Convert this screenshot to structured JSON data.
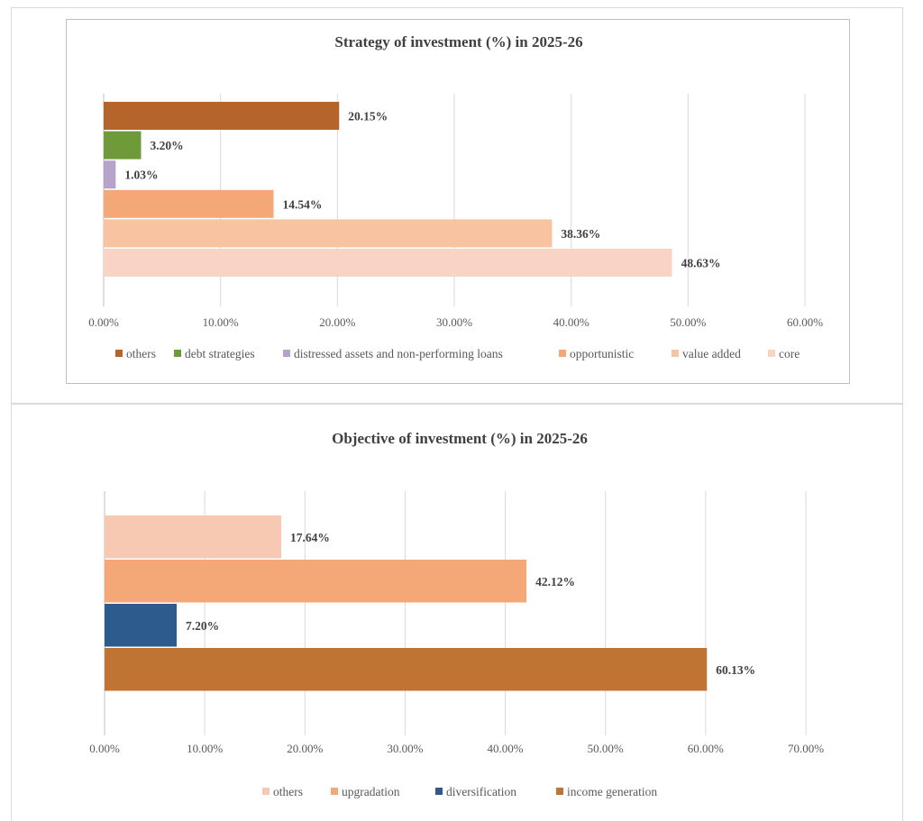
{
  "chart_data": [
    {
      "type": "bar",
      "orientation": "horizontal",
      "title": "Strategy of investment (%) in 2025-26",
      "categories": [
        "others",
        "debt strategies",
        "distressed assets and non-performing loans",
        "opportunistic",
        "value added",
        "core"
      ],
      "values": [
        20.15,
        3.2,
        1.03,
        14.54,
        38.36,
        48.63
      ],
      "data_labels": [
        "20.15%",
        "3.20%",
        "1.03%",
        "14.54%",
        "38.36%",
        "48.63%"
      ],
      "colors": [
        "#b5652b",
        "#6f9a3a",
        "#b6a3cc",
        "#f4a878",
        "#f8c3a0",
        "#f9d4c4"
      ],
      "xlim": [
        0,
        60
      ],
      "ticks": [
        0,
        10,
        20,
        30,
        40,
        50,
        60
      ],
      "tick_labels": [
        "0.00%",
        "10.00%",
        "20.00%",
        "30.00%",
        "40.00%",
        "50.00%",
        "60.00%"
      ],
      "legend": [
        "others",
        "debt strategies",
        "distressed assets and non-performing loans",
        "opportunistic",
        "value added",
        "core"
      ],
      "legend_position": "bottom",
      "grid": true
    },
    {
      "type": "bar",
      "orientation": "horizontal",
      "title": "Objective of investment (%) in 2025-26",
      "categories": [
        "others",
        "upgradation",
        "diversification",
        "income generation"
      ],
      "values": [
        17.64,
        42.12,
        7.2,
        60.13
      ],
      "data_labels": [
        "17.64%",
        "42.12%",
        "7.20%",
        "60.13%"
      ],
      "colors": [
        "#f7c9b3",
        "#f4a878",
        "#2e5b8e",
        "#c07434"
      ],
      "xlim": [
        0,
        70
      ],
      "ticks": [
        0,
        10,
        20,
        30,
        40,
        50,
        60,
        70
      ],
      "tick_labels": [
        "0.00%",
        "10.00%",
        "20.00%",
        "30.00%",
        "40.00%",
        "50.00%",
        "60.00%",
        "70.00%"
      ],
      "legend": [
        "others",
        "upgradation",
        "diversification",
        "income generation"
      ],
      "legend_position": "bottom",
      "grid": true
    }
  ]
}
